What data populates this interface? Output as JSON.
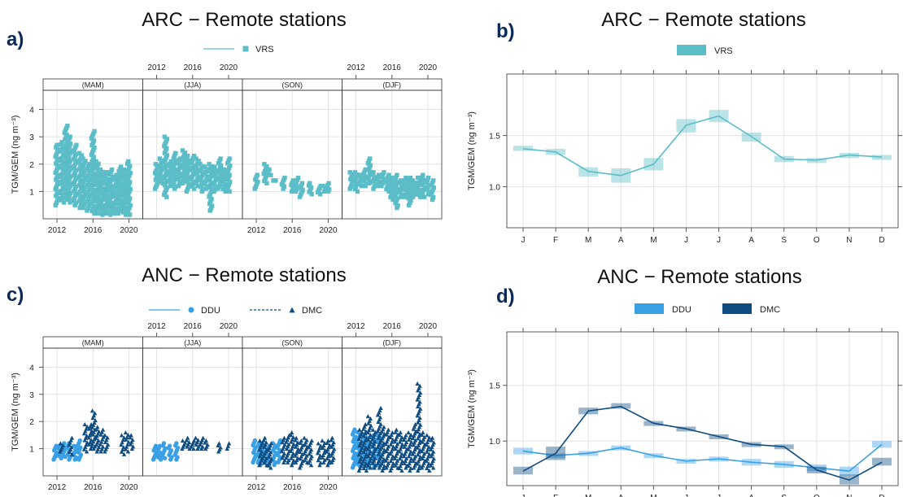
{
  "panels": [
    {
      "letter": "a)",
      "title": "ARC  −  Remote stations"
    },
    {
      "letter": "b)",
      "title": "ARC  −  Remote stations"
    },
    {
      "letter": "c)",
      "title": "ANC  −  Remote stations"
    },
    {
      "letter": "d)",
      "title": "ANC  −  Remote stations"
    }
  ],
  "colors": {
    "VRS": "#5bbdc8",
    "DDU": "#3aa0e6",
    "DMC": "#0f4c81",
    "grid": "#e3e3e3",
    "axis": "#555555"
  },
  "chart_data": [
    {
      "panel": "a",
      "type": "scatter",
      "title": "ARC  −  Remote stations",
      "ylabel": "TGM/GEM (ng m⁻³)",
      "ylim": [
        0,
        4.7
      ],
      "yticks": [
        "1",
        "2",
        "3",
        "4"
      ],
      "xticks": [
        "2012",
        "2016",
        "2020"
      ],
      "xlim": [
        2011,
        2021
      ],
      "facets": [
        "(MAM)",
        "(JJA)",
        "(SON)",
        "(DJF)"
      ],
      "legend": [
        {
          "name": "VRS",
          "marker": "square",
          "line": "solid"
        }
      ],
      "series": [
        {
          "name": "VRS",
          "facets": [
            {
              "x": [
                2012,
                2012.6,
                2013,
                2013.4,
                2014,
                2014.6,
                2015,
                2015.5,
                2016,
                2016.5,
                2017,
                2017.5,
                2018,
                2018.5,
                2019,
                2019.5,
                2020
              ],
              "ymin": [
                0.5,
                0.6,
                0.7,
                0.6,
                0.5,
                0.4,
                0.4,
                0.3,
                0.2,
                0.2,
                0.15,
                0.2,
                0.15,
                0.2,
                0.2,
                0.15,
                0.15
              ],
              "ymax": [
                2.7,
                2.8,
                3.4,
                3.0,
                2.7,
                2.4,
                2.2,
                2.0,
                3.2,
                2.1,
                1.8,
                1.7,
                1.8,
                1.6,
                1.9,
                1.8,
                2.1
              ]
            },
            {
              "x": [
                2012,
                2012.5,
                2013,
                2013.5,
                2014,
                2014.5,
                2015,
                2015.5,
                2016,
                2016.5,
                2017,
                2017.5,
                2018,
                2018.5,
                2019,
                2019.5,
                2020
              ],
              "ymin": [
                1.1,
                1.3,
                0.8,
                1.2,
                1.1,
                1.2,
                1.3,
                1.0,
                1.1,
                1.2,
                1.0,
                1.1,
                0.3,
                1.0,
                1.1,
                1.0,
                1.0
              ],
              "ymax": [
                2.0,
                2.2,
                3.0,
                2.1,
                2.4,
                2.2,
                2.5,
                2.3,
                2.3,
                2.2,
                2.0,
                1.9,
                2.0,
                1.9,
                2.2,
                1.8,
                2.2
              ]
            },
            {
              "x": [
                2012,
                2013,
                2013.5,
                2014,
                2015,
                2016,
                2016.5,
                2017,
                2018,
                2019,
                2019.5,
                2020
              ],
              "ymin": [
                1.1,
                1.3,
                1.6,
                1.4,
                1.1,
                1.0,
                1.0,
                0.8,
                0.9,
                0.9,
                1.0,
                1.0
              ],
              "ymax": [
                1.6,
                2.0,
                1.8,
                1.4,
                1.5,
                1.4,
                1.5,
                1.3,
                1.3,
                1.2,
                1.2,
                1.3
              ]
            },
            {
              "x": [
                2011.5,
                2012,
                2012.5,
                2013,
                2013.5,
                2014,
                2014.5,
                2015,
                2015.5,
                2016,
                2016.5,
                2017,
                2017.5,
                2018,
                2018.5,
                2019,
                2019.5,
                2020,
                2020.5
              ],
              "ymin": [
                1.1,
                1.0,
                1.2,
                1.2,
                1.3,
                1.1,
                1.2,
                1.2,
                1.0,
                0.7,
                0.4,
                0.8,
                0.8,
                0.5,
                0.8,
                0.8,
                0.8,
                0.9,
                0.7
              ],
              "ymax": [
                1.7,
                1.7,
                1.6,
                1.8,
                2.2,
                1.7,
                1.6,
                1.7,
                1.6,
                1.5,
                1.6,
                1.4,
                1.5,
                1.5,
                1.4,
                1.5,
                1.6,
                1.5,
                1.4
              ]
            }
          ]
        }
      ]
    },
    {
      "panel": "b",
      "type": "line",
      "title": "ARC  −  Remote stations",
      "ylabel": "TGM/GEM (ng m⁻³)",
      "ylim": [
        0.6,
        2.1
      ],
      "yticks": [
        1.0,
        1.5
      ],
      "categories": [
        "J",
        "F",
        "M",
        "A",
        "M",
        "J",
        "J",
        "A",
        "S",
        "O",
        "N",
        "D"
      ],
      "legend": [
        {
          "name": "VRS"
        }
      ],
      "series": [
        {
          "name": "VRS",
          "values": [
            1.37,
            1.34,
            1.15,
            1.11,
            1.22,
            1.6,
            1.69,
            1.49,
            1.27,
            1.26,
            1.31,
            1.29
          ],
          "lower": [
            1.35,
            1.31,
            1.1,
            1.04,
            1.16,
            1.53,
            1.63,
            1.44,
            1.24,
            1.24,
            1.28,
            1.27
          ],
          "upper": [
            1.4,
            1.37,
            1.19,
            1.18,
            1.28,
            1.66,
            1.75,
            1.53,
            1.3,
            1.28,
            1.33,
            1.31
          ]
        }
      ]
    },
    {
      "panel": "c",
      "type": "scatter",
      "title": "ANC  −  Remote stations",
      "ylabel": "TGM/GEM (ng m⁻³)",
      "ylim": [
        0,
        4.7
      ],
      "yticks": [
        "1",
        "2",
        "3",
        "4"
      ],
      "xticks": [
        "2012",
        "2016",
        "2020"
      ],
      "xlim": [
        2011,
        2021
      ],
      "facets": [
        "(MAM)",
        "(JJA)",
        "(SON)",
        "(DJF)"
      ],
      "legend": [
        {
          "name": "DDU",
          "marker": "circle",
          "line": "solid"
        },
        {
          "name": "DMC",
          "marker": "triangle",
          "line": "dashed"
        }
      ],
      "series": [
        {
          "name": "DDU",
          "facets": [
            {
              "x": [
                2011.8,
                2012.3,
                2012.8,
                2013.3,
                2014,
                2014.5
              ],
              "ymin": [
                0.6,
                0.65,
                0.7,
                0.6,
                0.6,
                0.6
              ],
              "ymax": [
                1.1,
                1.1,
                1.2,
                1.2,
                1.1,
                1.3
              ]
            },
            {
              "x": [
                2011.8,
                2012.3,
                2012.8,
                2013.5,
                2014.2
              ],
              "ymin": [
                0.6,
                0.6,
                0.65,
                0.6,
                0.6
              ],
              "ymax": [
                1.1,
                1.1,
                1.2,
                1.1,
                1.2
              ]
            },
            {
              "x": [
                2011.8,
                2012.3,
                2012.8,
                2013.3,
                2014,
                2014.5
              ],
              "ymin": [
                0.5,
                0.4,
                0.5,
                0.4,
                0.4,
                0.5
              ],
              "ymax": [
                1.3,
                1.2,
                1.2,
                1.1,
                1.2,
                1.3
              ]
            },
            {
              "x": [
                2011.8,
                2012.3,
                2012.8,
                2013.3,
                2014,
                2014.5
              ],
              "ymin": [
                0.3,
                0.35,
                0.4,
                0.3,
                0.3,
                0.4
              ],
              "ymax": [
                1.7,
                1.6,
                1.5,
                1.4,
                1.5,
                1.5
              ]
            }
          ]
        },
        {
          "name": "DMC",
          "facets": [
            {
              "x": [
                2012.5,
                2013.5,
                2015.2,
                2015.7,
                2016.1,
                2016.5,
                2017,
                2017.5,
                2019.3,
                2019.8,
                2020.3
              ],
              "ymin": [
                0.9,
                0.8,
                0.9,
                1.0,
                1.0,
                0.9,
                0.9,
                0.9,
                0.8,
                0.9,
                1.0
              ],
              "ymax": [
                1.2,
                1.4,
                1.9,
                1.9,
                2.4,
                1.8,
                1.7,
                1.5,
                1.5,
                1.6,
                1.5
              ]
            },
            {
              "x": [
                2015,
                2015.5,
                2016,
                2016.5,
                2017,
                2017.5,
                2019,
                2020
              ],
              "ymin": [
                1.0,
                1.0,
                1.0,
                1.0,
                1.0,
                1.0,
                0.9,
                1.0
              ],
              "ymax": [
                1.3,
                1.4,
                1.3,
                1.4,
                1.4,
                1.3,
                1.2,
                1.2
              ]
            },
            {
              "x": [
                2012.5,
                2013,
                2013.5,
                2015,
                2015.5,
                2016,
                2016.5,
                2017,
                2017.5,
                2018,
                2019,
                2019.5,
                2020,
                2020.5
              ],
              "ymin": [
                0.4,
                0.4,
                0.3,
                0.5,
                0.5,
                0.4,
                0.5,
                0.3,
                0.5,
                0.4,
                0.4,
                0.5,
                0.4,
                0.5
              ],
              "ymax": [
                1.3,
                1.4,
                1.2,
                1.4,
                1.5,
                1.6,
                1.4,
                1.3,
                1.4,
                1.3,
                1.2,
                1.3,
                1.3,
                1.4
              ]
            },
            {
              "x": [
                2012.5,
                2013,
                2013.5,
                2014,
                2014.6,
                2015,
                2015.5,
                2016,
                2016.5,
                2017,
                2017.5,
                2018,
                2018.5,
                2019,
                2019.5,
                2020,
                2020.5
              ],
              "ymin": [
                0.2,
                0.2,
                0.3,
                0.3,
                0.3,
                0.2,
                0.3,
                0.2,
                0.3,
                0.2,
                0.3,
                0.2,
                0.3,
                0.2,
                0.3,
                0.2,
                0.3
              ],
              "ymax": [
                1.7,
                1.9,
                2.2,
                1.7,
                2.5,
                1.8,
                1.7,
                1.6,
                1.7,
                1.6,
                1.5,
                1.6,
                1.9,
                3.4,
                1.6,
                1.5,
                1.4
              ]
            }
          ]
        }
      ]
    },
    {
      "panel": "d",
      "type": "line",
      "title": "ANC  −  Remote stations",
      "ylabel": "TGM/GEM (ng m⁻³)",
      "ylim": [
        0.6,
        1.98
      ],
      "yticks": [
        1.0,
        1.5
      ],
      "categories": [
        "J",
        "F",
        "M",
        "A",
        "M",
        "J",
        "J",
        "A",
        "S",
        "O",
        "N",
        "D"
      ],
      "legend": [
        {
          "name": "DDU"
        },
        {
          "name": "DMC"
        }
      ],
      "series": [
        {
          "name": "DDU",
          "values": [
            0.91,
            0.87,
            0.89,
            0.94,
            0.87,
            0.82,
            0.84,
            0.81,
            0.79,
            0.76,
            0.73,
            0.97
          ],
          "lower": [
            0.88,
            0.85,
            0.87,
            0.92,
            0.85,
            0.8,
            0.82,
            0.78,
            0.76,
            0.73,
            0.69,
            0.94
          ],
          "upper": [
            0.94,
            0.89,
            0.91,
            0.96,
            0.89,
            0.84,
            0.86,
            0.84,
            0.82,
            0.79,
            0.77,
            1.0
          ]
        },
        {
          "name": "DMC",
          "values": [
            0.73,
            0.89,
            1.27,
            1.31,
            1.16,
            1.11,
            1.04,
            0.97,
            0.95,
            0.74,
            0.65,
            0.81
          ],
          "lower": [
            0.7,
            0.83,
            1.24,
            1.29,
            1.14,
            1.09,
            1.02,
            0.95,
            0.93,
            0.71,
            0.61,
            0.78
          ],
          "upper": [
            0.77,
            0.95,
            1.3,
            1.34,
            1.18,
            1.13,
            1.06,
            0.99,
            0.97,
            0.77,
            0.7,
            0.85
          ]
        }
      ]
    }
  ]
}
